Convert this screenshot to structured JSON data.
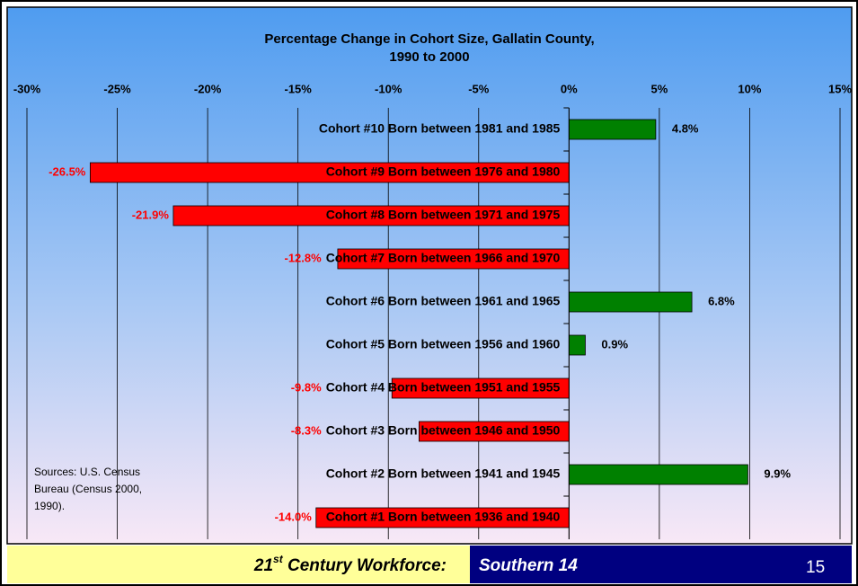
{
  "chart_data": {
    "type": "bar",
    "orientation": "horizontal",
    "title": [
      "Percentage Change in Cohort Size, Gallatin County,",
      "1990 to 2000"
    ],
    "categories": [
      "Cohort #10 Born between 1981  and 1985",
      "Cohort #9 Born between 1976  and 1980",
      "Cohort #8 Born between 1971  and 1975",
      "Cohort #7 Born between 1966  and 1970",
      "Cohort #6 Born between 1961  and 1965",
      "Cohort #5 Born between 1956  and 1960",
      "Cohort #4 Born between 1951  and 1955",
      "Cohort #3 Born between 1946  and 1950",
      "Cohort #2 Born between 1941  and 1945",
      "Cohort #1 Born between 1936  and 1940"
    ],
    "values": [
      4.8,
      -26.5,
      -21.9,
      -12.8,
      6.8,
      0.9,
      -9.8,
      -8.3,
      9.9,
      -14.0
    ],
    "value_labels": [
      "4.8%",
      "-26.5%",
      "-21.9%",
      "-12.8%",
      "6.8%",
      "0.9%",
      "-9.8%",
      "-8.3%",
      "9.9%",
      "-14.0%"
    ],
    "positive_color": "#008000",
    "negative_color": "#ff0000",
    "xlim": [
      -30,
      15
    ],
    "xticks": [
      {
        "value": -30,
        "label": "-30%"
      },
      {
        "value": -25,
        "label": "-25%"
      },
      {
        "value": -20,
        "label": "-20%"
      },
      {
        "value": -15,
        "label": "-15%"
      },
      {
        "value": -10,
        "label": "-10%"
      },
      {
        "value": -5,
        "label": "-5%"
      },
      {
        "value": 0,
        "label": "0%"
      },
      {
        "value": 5,
        "label": "5%"
      },
      {
        "value": 10,
        "label": "10%"
      },
      {
        "value": 15,
        "label": "15%"
      }
    ],
    "grid": true,
    "note": [
      "Sources: U.S. Census",
      "Bureau (Census 2000,",
      "1990)."
    ]
  },
  "footer": {
    "left": {
      "number": "21",
      "superscript": "st",
      "rest": " Century Workforce:"
    },
    "right": "Southern 14",
    "page": "15"
  }
}
